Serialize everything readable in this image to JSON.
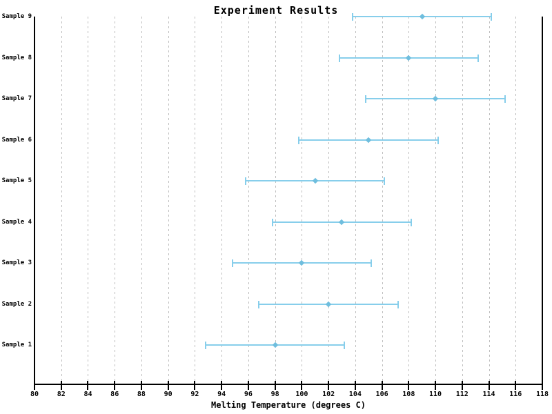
{
  "chart_data": {
    "type": "scatter",
    "subtype": "horizontal-errorbar",
    "title": "Experiment Results",
    "xlabel": "Melting Temperature (degrees C)",
    "ylabel": "",
    "categories": [
      "Sample 1",
      "Sample 2",
      "Sample 3",
      "Sample 4",
      "Sample 5",
      "Sample 6",
      "Sample 7",
      "Sample 8",
      "Sample 9"
    ],
    "values": [
      98,
      102,
      100,
      103,
      101,
      105,
      110,
      108,
      109
    ],
    "x_error": 5.2,
    "xlim": [
      80,
      118
    ],
    "x_ticks": [
      80,
      82,
      84,
      86,
      88,
      90,
      92,
      94,
      96,
      98,
      100,
      102,
      104,
      106,
      108,
      110,
      112,
      114,
      116,
      118
    ],
    "grid": "vertical-dashed",
    "legend": "none",
    "marker": "diamond",
    "colors": {
      "errorbar": "#87CEEB",
      "marker": "#6fbede",
      "grid": "#bdbdbd",
      "axis": "#000000",
      "text": "#000000",
      "background": "#ffffff"
    }
  }
}
